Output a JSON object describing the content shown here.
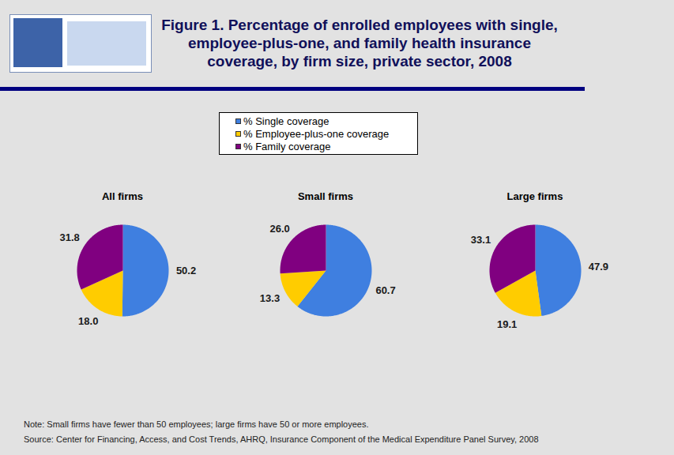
{
  "title": "Figure 1. Percentage of enrolled employees with single, employee-plus-one, and family health insurance coverage, by firm size, private sector, 2008",
  "chart_data": [
    {
      "type": "pie",
      "title": "All firms",
      "categories": [
        "% Single coverage",
        "% Employee-plus-one coverage",
        "% Family coverage"
      ],
      "values": [
        50.2,
        18.0,
        31.8
      ],
      "value_labels": [
        "50.2",
        "18.0",
        "31.8"
      ],
      "colors": [
        "#3f7fe0",
        "#ffcc00",
        "#800080"
      ],
      "data_labels": true,
      "legend": "top"
    },
    {
      "type": "pie",
      "title": "Small firms",
      "categories": [
        "% Single coverage",
        "% Employee-plus-one coverage",
        "% Family coverage"
      ],
      "values": [
        60.7,
        13.3,
        26.0
      ],
      "value_labels": [
        "60.7",
        "13.3",
        "26.0"
      ],
      "colors": [
        "#3f7fe0",
        "#ffcc00",
        "#800080"
      ],
      "data_labels": true
    },
    {
      "type": "pie",
      "title": "Large firms",
      "categories": [
        "% Single coverage",
        "% Employee-plus-one coverage",
        "% Family coverage"
      ],
      "values": [
        47.9,
        19.1,
        33.1
      ],
      "value_labels": [
        "47.9",
        "19.1",
        "33.1"
      ],
      "colors": [
        "#3f7fe0",
        "#ffcc00",
        "#800080"
      ],
      "data_labels": true
    }
  ],
  "note": "Note: Small firms have fewer than 50 employees; large firms have 50 or more employees.",
  "source": "Source: Center for Financing, Access, and Cost Trends, AHRQ, Insurance Component of the Medical Expenditure Panel Survey, 2008"
}
